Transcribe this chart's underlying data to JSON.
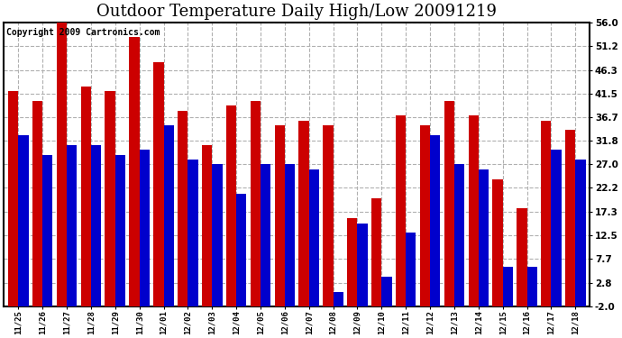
{
  "title": "Outdoor Temperature Daily High/Low 20091219",
  "copyright": "Copyright 2009 Cartronics.com",
  "dates": [
    "11/25",
    "11/26",
    "11/27",
    "11/28",
    "11/29",
    "11/30",
    "12/01",
    "12/02",
    "12/03",
    "12/04",
    "12/05",
    "12/06",
    "12/07",
    "12/08",
    "12/09",
    "12/10",
    "12/11",
    "12/12",
    "12/13",
    "12/14",
    "12/15",
    "12/16",
    "12/17",
    "12/18"
  ],
  "highs": [
    42,
    40,
    57,
    43,
    42,
    53,
    48,
    38,
    31,
    39,
    40,
    35,
    36,
    35,
    16,
    20,
    37,
    35,
    40,
    37,
    24,
    18,
    36,
    34
  ],
  "lows": [
    33,
    29,
    31,
    31,
    29,
    30,
    35,
    28,
    27,
    21,
    27,
    27,
    26,
    1,
    15,
    4,
    13,
    33,
    27,
    26,
    6,
    6,
    30,
    28
  ],
  "high_color": "#cc0000",
  "low_color": "#0000cc",
  "background_color": "#ffffff",
  "grid_color": "#b0b0b0",
  "ylim": [
    -2.0,
    56.0
  ],
  "yticks": [
    -2.0,
    2.8,
    7.7,
    12.5,
    17.3,
    22.2,
    27.0,
    31.8,
    36.7,
    41.5,
    46.3,
    51.2,
    56.0
  ],
  "title_fontsize": 13,
  "copyright_fontsize": 7,
  "bar_bottom": -2.0
}
